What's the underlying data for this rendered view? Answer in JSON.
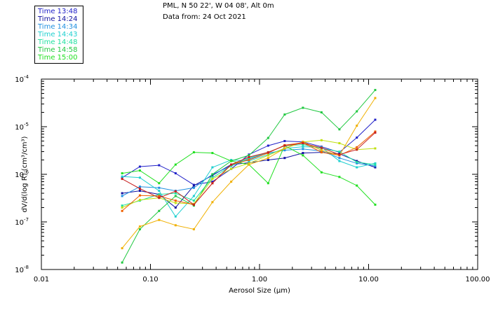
{
  "header": {
    "location": "PML, N 50 22', W 04 08', Alt 0m",
    "date": "Data from: 24 Oct 2021"
  },
  "chart_data": {
    "type": "line",
    "xlabel": "Aerosol Size (μm)",
    "ylabel": "dV/d(log R) (cm³/cm³)",
    "x_scale": "log",
    "y_scale": "log",
    "xlim": [
      0.01,
      100
    ],
    "ylim": [
      1e-08,
      0.0001
    ],
    "x_ticks": [
      {
        "value": 0.01,
        "label": "0.01"
      },
      {
        "value": 0.1,
        "label": "0.10"
      },
      {
        "value": 1,
        "label": "1.00"
      },
      {
        "value": 10,
        "label": "10.00"
      },
      {
        "value": 100,
        "label": "100.00"
      }
    ],
    "y_ticks": [
      {
        "value": 1e-08,
        "base": "10",
        "exp": "-8"
      },
      {
        "value": 1e-07,
        "base": "10",
        "exp": "-7"
      },
      {
        "value": 1e-06,
        "base": "10",
        "exp": "-6"
      },
      {
        "value": 1e-05,
        "base": "10",
        "exp": "-5"
      },
      {
        "value": 0.0001,
        "base": "10",
        "exp": "-4"
      }
    ],
    "grid": false,
    "legend_position": "top-left",
    "x": [
      0.055,
      0.08,
      0.12,
      0.17,
      0.25,
      0.37,
      0.55,
      0.8,
      1.2,
      1.7,
      2.5,
      3.7,
      5.4,
      7.8,
      11.5
    ],
    "series": [
      {
        "name": "Time 13:48",
        "color": "#2020c8",
        "values": [
          8.5e-07,
          1.45e-06,
          1.55e-06,
          1.05e-06,
          6e-07,
          7e-07,
          1.3e-06,
          2.6e-06,
          4e-06,
          5e-06,
          4.8e-06,
          3.8e-06,
          2.9e-06,
          5.9e-06,
          1.4e-05
        ]
      },
      {
        "name": "Time 14:24",
        "color": "#1010a0",
        "values": [
          4e-07,
          4.5e-07,
          3.8e-07,
          2e-07,
          5.8e-07,
          9.5e-07,
          1.6e-06,
          1.75e-06,
          2e-06,
          2.2e-06,
          2.8e-06,
          2.9e-06,
          2.7e-06,
          1.9e-06,
          1.4e-06
        ]
      },
      {
        "name": "Time 14:34",
        "color": "#2090e0",
        "values": [
          3.5e-07,
          5.5e-07,
          5.2e-07,
          4.5e-07,
          5.2e-07,
          1e-06,
          1.5e-06,
          2.1e-06,
          2.8e-06,
          3.2e-06,
          3.4e-06,
          3.1e-06,
          2.2e-06,
          1.7e-06,
          1.5e-06
        ]
      },
      {
        "name": "Time 14:43",
        "color": "#20d0d0",
        "values": [
          9e-07,
          8.5e-07,
          4.5e-07,
          1.3e-07,
          3.5e-07,
          1.4e-06,
          2e-06,
          1.9e-06,
          2.6e-06,
          3.5e-06,
          3.8e-06,
          3.7e-06,
          1.9e-06,
          1.4e-06,
          1.7e-06
        ]
      },
      {
        "name": "Time 14:48",
        "color": "#20e0a0",
        "values": [
          2.2e-07,
          2.8e-07,
          3.8e-07,
          4e-07,
          2.8e-07,
          8.5e-07,
          1.5e-06,
          2.2e-06,
          2.9e-06,
          4e-06,
          4.2e-06,
          3.5e-06,
          3e-06,
          1.8e-06,
          1.6e-06
        ]
      },
      {
        "name": "Time 14:58",
        "color": "#20c840",
        "values": [
          1.4e-08,
          7e-08,
          1.7e-07,
          3.5e-07,
          2.2e-07,
          1e-06,
          1.9e-06,
          2.5e-06,
          5.8e-06,
          1.8e-05,
          2.5e-05,
          2e-05,
          8.8e-06,
          2.1e-05,
          5.9e-05
        ]
      },
      {
        "name": "Time 15:00",
        "color": "#20e020",
        "values": [
          1.05e-06,
          1.2e-06,
          6.5e-07,
          1.6e-06,
          2.9e-06,
          2.8e-06,
          1.9e-06,
          1.6e-06,
          6.5e-07,
          4e-06,
          2.5e-06,
          1.1e-06,
          8.8e-07,
          5.8e-07,
          2.3e-07
        ]
      },
      {
        "name": "",
        "color": "#c0e010",
        "values": [
          2e-07,
          2.9e-07,
          3.2e-07,
          2.5e-07,
          2.4e-07,
          8e-07,
          1.3e-06,
          1.7e-06,
          2.5e-06,
          3.5e-06,
          4.8e-06,
          5.2e-06,
          4.5e-06,
          3.3e-06,
          3.5e-06
        ]
      },
      {
        "name": "",
        "color": "#f0b000",
        "values": [
          2.8e-08,
          8e-08,
          1.1e-07,
          8.5e-08,
          7e-08,
          2.6e-07,
          7e-07,
          1.6e-06,
          2.2e-06,
          3.5e-06,
          4.8e-06,
          3.2e-06,
          2.5e-06,
          1.05e-05,
          4e-05
        ]
      },
      {
        "name": "",
        "color": "#f06000",
        "values": [
          1.7e-07,
          3.6e-07,
          3.5e-07,
          2.8e-07,
          2.3e-07,
          6.5e-07,
          1.6e-06,
          2e-06,
          2.8e-06,
          4.1e-06,
          4.6e-06,
          2.9e-06,
          2.5e-06,
          3.7e-06,
          7.9e-06
        ]
      },
      {
        "name": "",
        "color": "#c82020",
        "values": [
          8e-07,
          5e-07,
          3.2e-07,
          4.4e-07,
          2.3e-07,
          6.5e-07,
          1.6e-06,
          2.3e-06,
          2.9e-06,
          4e-06,
          4.5e-06,
          3.6e-06,
          2.6e-06,
          3.3e-06,
          7.5e-06
        ]
      }
    ]
  }
}
